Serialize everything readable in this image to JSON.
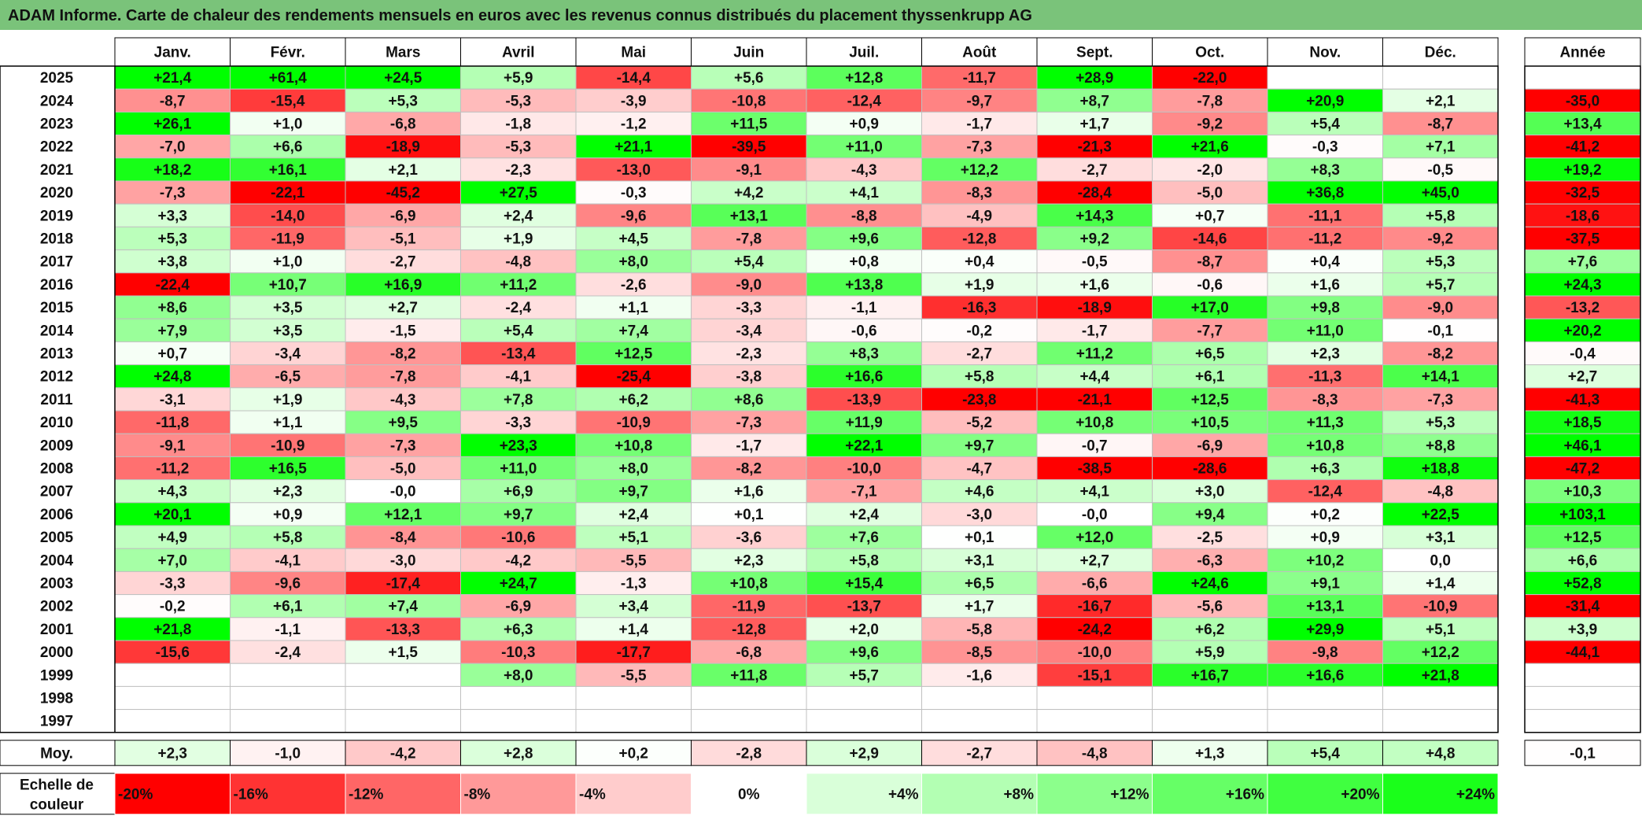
{
  "title": "ADAM Informe. Carte de chaleur des rendements mensuels en euros avec les revenus connus distribués du placement thyssenkrupp AG",
  "chart_data": {
    "type": "heatmap",
    "title": "ADAM Informe. Carte de chaleur des rendements mensuels en euros avec les revenus connus distribués du placement thyssenkrupp AG",
    "columns": [
      "Janv.",
      "Févr.",
      "Mars",
      "Avril",
      "Mai",
      "Juin",
      "Juil.",
      "Août",
      "Sept.",
      "Oct.",
      "Nov.",
      "Déc."
    ],
    "year_column_label": "Année",
    "rows": [
      {
        "year": "2025",
        "values": [
          "+21,4",
          "+61,4",
          "+24,5",
          "+5,9",
          "-14,4",
          "+5,6",
          "+12,8",
          "-11,7",
          "+28,9",
          "-22,0",
          "",
          ""
        ],
        "annual": ""
      },
      {
        "year": "2024",
        "values": [
          "-8,7",
          "-15,4",
          "+5,3",
          "-5,3",
          "-3,9",
          "-10,8",
          "-12,4",
          "-9,7",
          "+8,7",
          "-7,8",
          "+20,9",
          "+2,1"
        ],
        "annual": "-35,0"
      },
      {
        "year": "2023",
        "values": [
          "+26,1",
          "+1,0",
          "-6,8",
          "-1,8",
          "-1,2",
          "+11,5",
          "+0,9",
          "-1,7",
          "+1,7",
          "-9,2",
          "+5,4",
          "-8,7"
        ],
        "annual": "+13,4"
      },
      {
        "year": "2022",
        "values": [
          "-7,0",
          "+6,6",
          "-18,9",
          "-5,3",
          "+21,1",
          "-39,5",
          "+11,0",
          "-7,3",
          "-21,3",
          "+21,6",
          "-0,3",
          "+7,1"
        ],
        "annual": "-41,2"
      },
      {
        "year": "2021",
        "values": [
          "+18,2",
          "+16,1",
          "+2,1",
          "-2,3",
          "-13,0",
          "-9,1",
          "-4,3",
          "+12,2",
          "-2,7",
          "-2,0",
          "+8,3",
          "-0,5"
        ],
        "annual": "+19,2"
      },
      {
        "year": "2020",
        "values": [
          "-7,3",
          "-22,1",
          "-45,2",
          "+27,5",
          "-0,3",
          "+4,2",
          "+4,1",
          "-8,3",
          "-28,4",
          "-5,0",
          "+36,8",
          "+45,0"
        ],
        "annual": "-32,5"
      },
      {
        "year": "2019",
        "values": [
          "+3,3",
          "-14,0",
          "-6,9",
          "+2,4",
          "-9,6",
          "+13,1",
          "-8,8",
          "-4,9",
          "+14,3",
          "+0,7",
          "-11,1",
          "+5,8"
        ],
        "annual": "-18,6"
      },
      {
        "year": "2018",
        "values": [
          "+5,3",
          "-11,9",
          "-5,1",
          "+1,9",
          "+4,5",
          "-7,8",
          "+9,6",
          "-12,8",
          "+9,2",
          "-14,6",
          "-11,2",
          "-9,2"
        ],
        "annual": "-37,5"
      },
      {
        "year": "2017",
        "values": [
          "+3,8",
          "+1,0",
          "-2,7",
          "-4,8",
          "+8,0",
          "+5,4",
          "+0,8",
          "+0,4",
          "-0,5",
          "-8,7",
          "+0,4",
          "+5,3"
        ],
        "annual": "+7,6"
      },
      {
        "year": "2016",
        "values": [
          "-22,4",
          "+10,7",
          "+16,9",
          "+11,2",
          "-2,6",
          "-9,0",
          "+13,8",
          "+1,9",
          "+1,6",
          "-0,6",
          "+1,6",
          "+5,7"
        ],
        "annual": "+24,3"
      },
      {
        "year": "2015",
        "values": [
          "+8,6",
          "+3,5",
          "+2,7",
          "-2,4",
          "+1,1",
          "-3,3",
          "-1,1",
          "-16,3",
          "-18,9",
          "+17,0",
          "+9,8",
          "-9,0"
        ],
        "annual": "-13,2"
      },
      {
        "year": "2014",
        "values": [
          "+7,9",
          "+3,5",
          "-1,5",
          "+5,4",
          "+7,4",
          "-3,4",
          "-0,6",
          "-0,2",
          "-1,7",
          "-7,7",
          "+11,0",
          "-0,1"
        ],
        "annual": "+20,2"
      },
      {
        "year": "2013",
        "values": [
          "+0,7",
          "-3,4",
          "-8,2",
          "-13,4",
          "+12,5",
          "-2,3",
          "+8,3",
          "-2,7",
          "+11,2",
          "+6,5",
          "+2,3",
          "-8,2"
        ],
        "annual": "-0,4"
      },
      {
        "year": "2012",
        "values": [
          "+24,8",
          "-6,5",
          "-7,8",
          "-4,1",
          "-25,4",
          "-3,8",
          "+16,6",
          "+5,8",
          "+4,4",
          "+6,1",
          "-11,3",
          "+14,1"
        ],
        "annual": "+2,7"
      },
      {
        "year": "2011",
        "values": [
          "-3,1",
          "+1,9",
          "-4,3",
          "+7,8",
          "+6,2",
          "+8,6",
          "-13,9",
          "-23,8",
          "-21,1",
          "+12,5",
          "-8,3",
          "-7,3"
        ],
        "annual": "-41,3"
      },
      {
        "year": "2010",
        "values": [
          "-11,8",
          "+1,1",
          "+9,5",
          "-3,3",
          "-10,9",
          "-7,3",
          "+11,9",
          "-5,2",
          "+10,8",
          "+10,5",
          "+11,3",
          "+5,3"
        ],
        "annual": "+18,5"
      },
      {
        "year": "2009",
        "values": [
          "-9,1",
          "-10,9",
          "-7,3",
          "+23,3",
          "+10,8",
          "-1,7",
          "+22,1",
          "+9,7",
          "-0,7",
          "-6,9",
          "+10,8",
          "+8,8"
        ],
        "annual": "+46,1"
      },
      {
        "year": "2008",
        "values": [
          "-11,2",
          "+16,5",
          "-5,0",
          "+11,0",
          "+8,0",
          "-8,2",
          "-10,0",
          "-4,7",
          "-38,5",
          "-28,6",
          "+6,3",
          "+18,8"
        ],
        "annual": "-47,2"
      },
      {
        "year": "2007",
        "values": [
          "+4,3",
          "+2,3",
          "-0,0",
          "+6,9",
          "+9,7",
          "+1,6",
          "-7,1",
          "+4,6",
          "+4,1",
          "+3,0",
          "-12,4",
          "-4,8"
        ],
        "annual": "+10,3"
      },
      {
        "year": "2006",
        "values": [
          "+20,1",
          "+0,9",
          "+12,1",
          "+9,7",
          "+2,4",
          "+0,1",
          "+2,4",
          "-3,0",
          "-0,0",
          "+9,4",
          "+0,2",
          "+22,5"
        ],
        "annual": "+103,1"
      },
      {
        "year": "2005",
        "values": [
          "+4,9",
          "+5,8",
          "-8,4",
          "-10,6",
          "+5,1",
          "-3,6",
          "+7,6",
          "+0,1",
          "+12,0",
          "-2,5",
          "+0,9",
          "+3,1"
        ],
        "annual": "+12,5"
      },
      {
        "year": "2004",
        "values": [
          "+7,0",
          "-4,1",
          "-3,0",
          "-4,2",
          "-5,5",
          "+2,3",
          "+5,8",
          "+3,1",
          "+2,7",
          "-6,3",
          "+10,2",
          "0,0"
        ],
        "annual": "+6,6"
      },
      {
        "year": "2003",
        "values": [
          "-3,3",
          "-9,6",
          "-17,4",
          "+24,7",
          "-1,3",
          "+10,8",
          "+15,4",
          "+6,5",
          "-6,6",
          "+24,6",
          "+9,1",
          "+1,4"
        ],
        "annual": "+52,8"
      },
      {
        "year": "2002",
        "values": [
          "-0,2",
          "+6,1",
          "+7,4",
          "-6,9",
          "+3,4",
          "-11,9",
          "-13,7",
          "+1,7",
          "-16,7",
          "-5,6",
          "+13,1",
          "-10,9"
        ],
        "annual": "-31,4"
      },
      {
        "year": "2001",
        "values": [
          "+21,8",
          "-1,1",
          "-13,3",
          "+6,3",
          "+1,4",
          "-12,8",
          "+2,0",
          "-5,8",
          "-24,2",
          "+6,2",
          "+29,9",
          "+5,1"
        ],
        "annual": "+3,9"
      },
      {
        "year": "2000",
        "values": [
          "-15,6",
          "-2,4",
          "+1,5",
          "-10,3",
          "-17,7",
          "-6,8",
          "+9,6",
          "-8,5",
          "-10,0",
          "+5,9",
          "-9,8",
          "+12,2"
        ],
        "annual": "-44,1"
      },
      {
        "year": "1999",
        "values": [
          "",
          "",
          "",
          "+8,0",
          "-5,5",
          "+11,8",
          "+5,7",
          "-1,6",
          "-15,1",
          "+16,7",
          "+16,6",
          "+21,8"
        ],
        "annual": ""
      },
      {
        "year": "1998",
        "values": [
          "",
          "",
          "",
          "",
          "",
          "",
          "",
          "",
          "",
          "",
          "",
          ""
        ],
        "annual": ""
      },
      {
        "year": "1997",
        "values": [
          "",
          "",
          "",
          "",
          "",
          "",
          "",
          "",
          "",
          "",
          "",
          ""
        ],
        "annual": ""
      }
    ],
    "average_row": {
      "label": "Moy.",
      "values": [
        "+2,3",
        "-1,0",
        "-4,2",
        "+2,8",
        "+0,2",
        "-2,8",
        "+2,9",
        "-2,7",
        "-4,8",
        "+1,3",
        "+5,4",
        "+4,8"
      ],
      "annual": "-0,1"
    },
    "color_scale": {
      "label_line1": "Echelle de",
      "label_line2": "couleur",
      "stops": [
        {
          "label": "-20%",
          "value": -20,
          "color": "#ff0000"
        },
        {
          "label": "-16%",
          "value": -16,
          "color": "#ff3333"
        },
        {
          "label": "-12%",
          "value": -12,
          "color": "#ff6666"
        },
        {
          "label": "-8%",
          "value": -8,
          "color": "#ff9999"
        },
        {
          "label": "-4%",
          "value": -4,
          "color": "#ffcccc"
        },
        {
          "label": "0%",
          "value": 0,
          "color": "#ffffff"
        },
        {
          "label": "+4%",
          "value": 4,
          "color": "#d9ffd9"
        },
        {
          "label": "+8%",
          "value": 8,
          "color": "#b3ffb3"
        },
        {
          "label": "+12%",
          "value": 12,
          "color": "#8cff8c"
        },
        {
          "label": "+16%",
          "value": 16,
          "color": "#66ff66"
        },
        {
          "label": "+20%",
          "value": 20,
          "color": "#40ff40"
        },
        {
          "label": "+24%",
          "value": 24,
          "color": "#1aff1a"
        }
      ]
    },
    "colors": {
      "title_bar": "#7ac37a",
      "grid": "#c0c0c0",
      "border": "#000000"
    }
  }
}
